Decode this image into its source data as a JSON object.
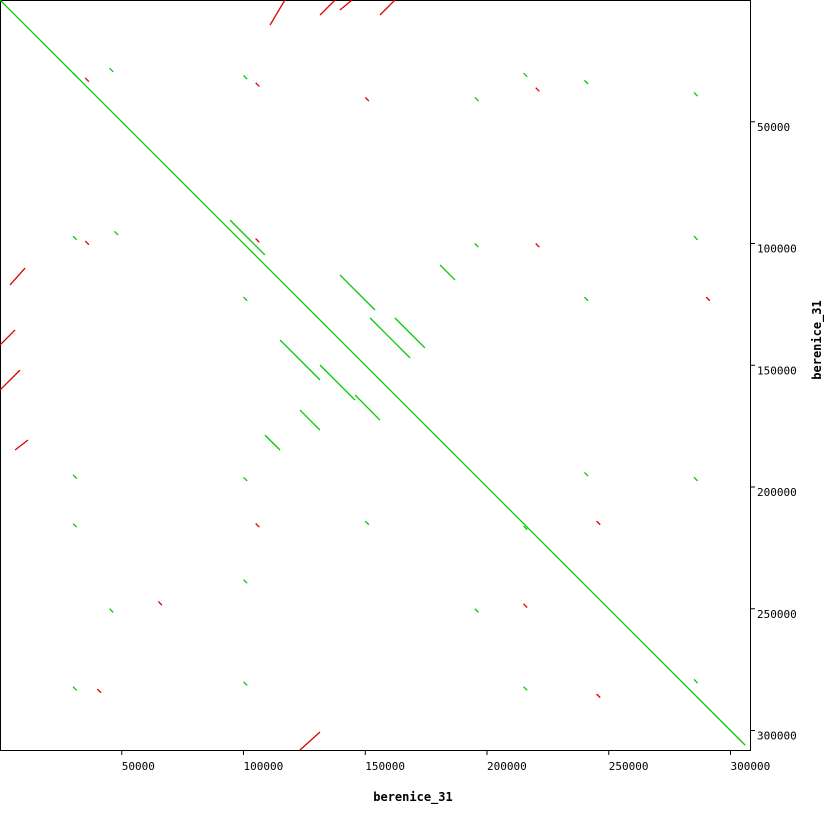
{
  "chart_data": {
    "type": "dotplot",
    "xlabel": "berenice_31",
    "ylabel": "berenice_31",
    "xlim": [
      0,
      308000
    ],
    "ylim": [
      0,
      308000
    ],
    "xticks": [
      50000,
      100000,
      150000,
      200000,
      250000,
      300000
    ],
    "yticks": [
      50000,
      100000,
      150000,
      200000,
      250000,
      300000
    ],
    "series": [
      {
        "color": "#00cc00",
        "segments": [
          [
            0,
            0,
            306000,
            306000
          ],
          [
            139600,
            112900,
            154000,
            127300
          ],
          [
            152000,
            130600,
            168400,
            147000
          ],
          [
            115000,
            139600,
            131400,
            156000
          ],
          [
            131400,
            149900,
            145800,
            164300
          ],
          [
            162200,
            130600,
            174500,
            142900
          ],
          [
            94500,
            90400,
            108800,
            104700
          ],
          [
            180700,
            108800,
            186900,
            115000
          ],
          [
            108800,
            178700,
            115000,
            184800
          ],
          [
            145800,
            162200,
            156000,
            172500
          ],
          [
            123200,
            168400,
            131400,
            176600
          ],
          [
            30000,
            30000,
            31500,
            31500
          ],
          [
            45000,
            28000,
            46500,
            29500
          ],
          [
            100000,
            31000,
            101500,
            32500
          ],
          [
            195000,
            40000,
            196500,
            41500
          ],
          [
            215000,
            30000,
            216500,
            31500
          ],
          [
            240000,
            33000,
            241500,
            34500
          ],
          [
            285000,
            38000,
            286500,
            39500
          ],
          [
            30000,
            97000,
            31500,
            98500
          ],
          [
            47000,
            95000,
            48500,
            96500
          ],
          [
            195000,
            100000,
            196500,
            101500
          ],
          [
            285000,
            97000,
            286500,
            98500
          ],
          [
            100000,
            122000,
            101500,
            123500
          ],
          [
            240000,
            122000,
            241500,
            123500
          ],
          [
            30000,
            195000,
            31500,
            196500
          ],
          [
            100000,
            196000,
            101500,
            197500
          ],
          [
            240000,
            194000,
            241500,
            195500
          ],
          [
            285000,
            196000,
            286500,
            197500
          ],
          [
            30000,
            215000,
            31500,
            216500
          ],
          [
            150000,
            214000,
            151500,
            215500
          ],
          [
            215000,
            216000,
            216500,
            217500
          ],
          [
            45000,
            250000,
            46500,
            251500
          ],
          [
            100000,
            238000,
            101500,
            239500
          ],
          [
            195000,
            250000,
            196500,
            251500
          ],
          [
            30000,
            282000,
            31500,
            283500
          ],
          [
            100000,
            280000,
            101500,
            281500
          ],
          [
            215000,
            282000,
            216500,
            283500
          ],
          [
            285000,
            279000,
            286500,
            280500
          ]
        ]
      },
      {
        "color": "#dd0000",
        "segments": [
          [
            0,
            141700,
            6200,
            135500
          ],
          [
            0,
            160200,
            8200,
            152000
          ],
          [
            4100,
            117000,
            10300,
            110100
          ],
          [
            110900,
            10300,
            117000,
            0
          ],
          [
            131400,
            6200,
            137600,
            0
          ],
          [
            156000,
            6200,
            162200,
            0
          ],
          [
            123200,
            308000,
            131400,
            300600
          ],
          [
            6200,
            184800,
            11500,
            180700
          ],
          [
            139600,
            4100,
            144600,
            0
          ],
          [
            35000,
            32000,
            36500,
            33500
          ],
          [
            105000,
            34000,
            106500,
            35500
          ],
          [
            150000,
            40000,
            151500,
            41500
          ],
          [
            220000,
            36000,
            221500,
            37500
          ],
          [
            35000,
            99000,
            36500,
            100500
          ],
          [
            105000,
            98000,
            106500,
            99500
          ],
          [
            220000,
            100000,
            221500,
            101500
          ],
          [
            290000,
            122000,
            291500,
            123500
          ],
          [
            105000,
            215000,
            106500,
            216500
          ],
          [
            245000,
            214000,
            246500,
            215500
          ],
          [
            65000,
            247000,
            66500,
            248500
          ],
          [
            215000,
            248000,
            216500,
            249500
          ],
          [
            40000,
            283000,
            41500,
            284500
          ],
          [
            245000,
            285000,
            246500,
            286500
          ]
        ]
      }
    ]
  }
}
